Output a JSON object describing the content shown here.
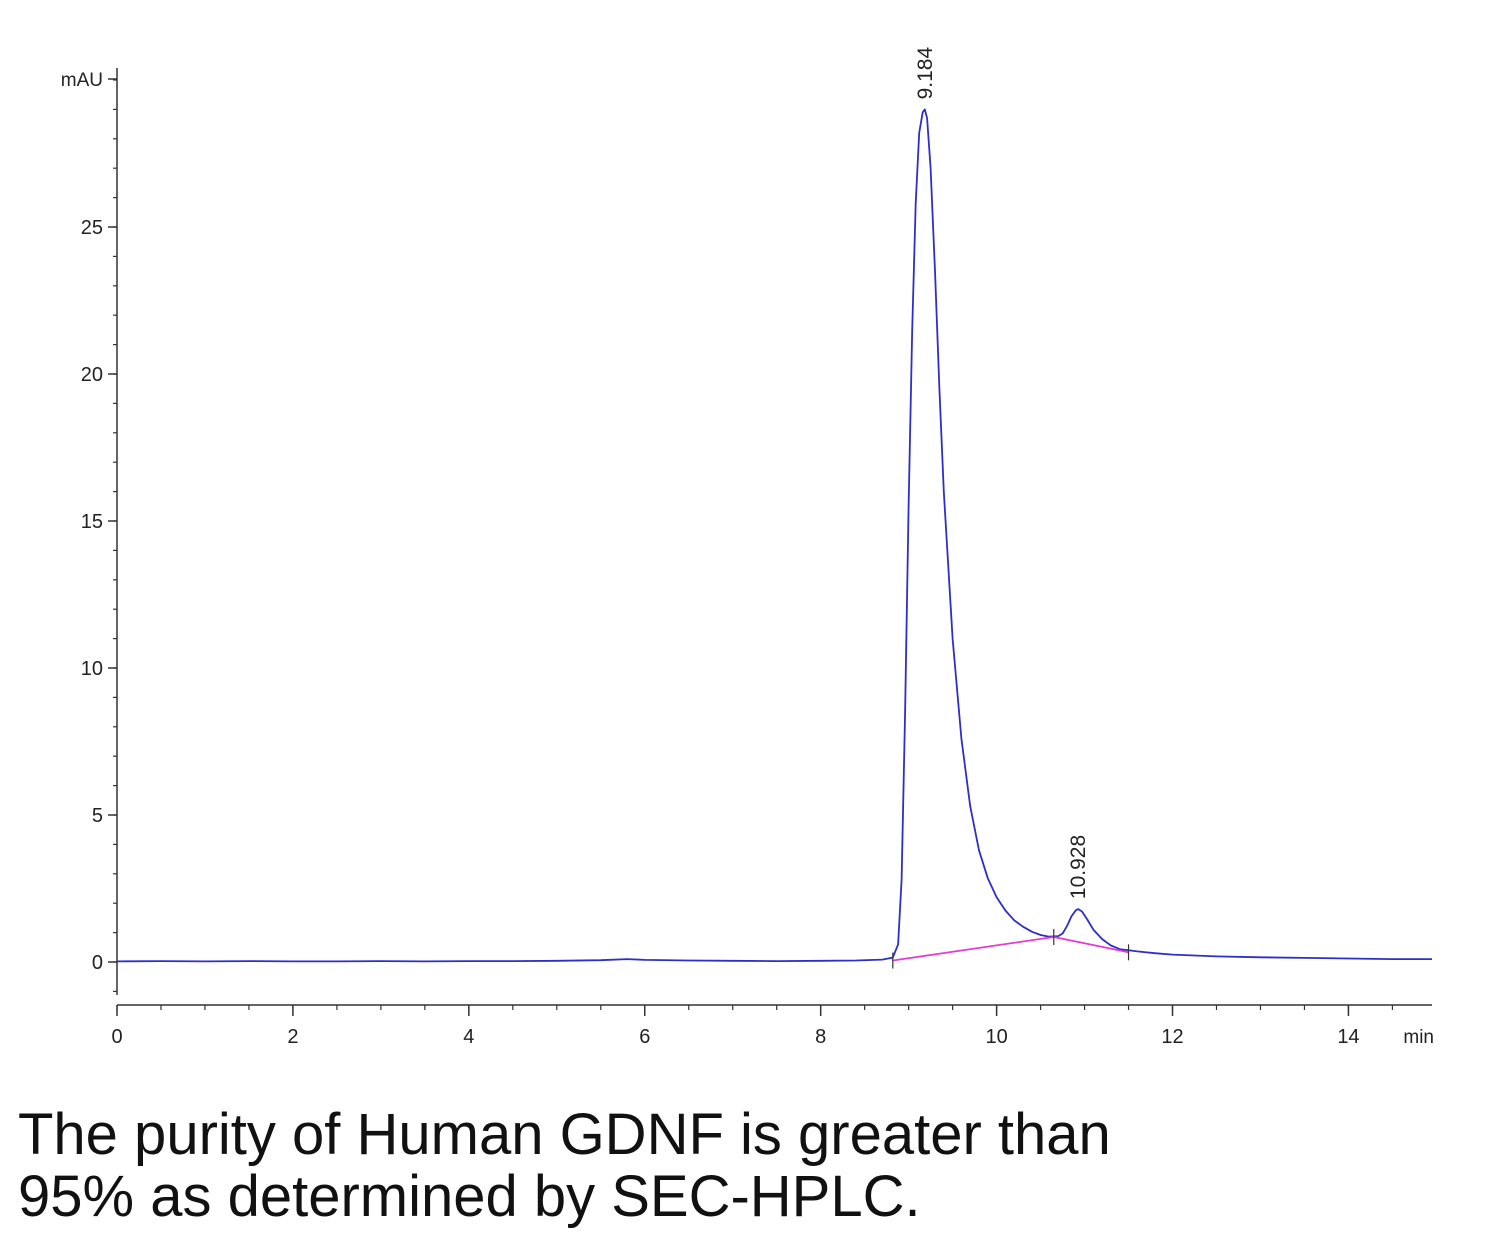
{
  "chart_data": {
    "type": "line",
    "ylabel": "mAU",
    "xlabel": "min",
    "xlim": [
      0,
      14.95
    ],
    "ylim": [
      -1.4,
      30
    ],
    "x_ticks": [
      0,
      2,
      4,
      6,
      8,
      10,
      12,
      14
    ],
    "x_minor_step": 0.5,
    "y_ticks": [
      0,
      5,
      10,
      15,
      20,
      25
    ],
    "y_minor_step": 1,
    "grid": false,
    "series": [
      {
        "color": "#2e2ec8",
        "x": [
          0,
          0.5,
          1,
          1.5,
          2,
          2.5,
          3,
          3.5,
          4,
          4.5,
          5,
          5.5,
          5.8,
          6,
          6.5,
          7,
          7.5,
          8,
          8.4,
          8.7,
          8.82,
          8.88,
          8.92,
          8.96,
          9.0,
          9.04,
          9.08,
          9.12,
          9.16,
          9.184,
          9.21,
          9.25,
          9.3,
          9.35,
          9.4,
          9.5,
          9.6,
          9.7,
          9.8,
          9.9,
          10.0,
          10.1,
          10.2,
          10.3,
          10.4,
          10.5,
          10.6,
          10.7,
          10.75,
          10.8,
          10.85,
          10.9,
          10.928,
          10.97,
          11.03,
          11.1,
          11.2,
          11.3,
          11.4,
          11.6,
          11.8,
          12.0,
          12.5,
          13.0,
          13.5,
          14.0,
          14.5,
          14.95
        ],
        "y": [
          0.02,
          0.03,
          0.02,
          0.03,
          0.02,
          0.02,
          0.03,
          0.02,
          0.03,
          0.03,
          0.04,
          0.06,
          0.1,
          0.07,
          0.05,
          0.04,
          0.03,
          0.04,
          0.05,
          0.08,
          0.15,
          0.6,
          2.8,
          8.5,
          15.5,
          21.5,
          25.8,
          28.2,
          28.9,
          29.0,
          28.7,
          27.0,
          23.5,
          19.5,
          16.0,
          11.0,
          7.6,
          5.3,
          3.8,
          2.85,
          2.2,
          1.75,
          1.42,
          1.2,
          1.03,
          0.92,
          0.86,
          0.88,
          0.97,
          1.22,
          1.55,
          1.76,
          1.8,
          1.72,
          1.45,
          1.1,
          0.78,
          0.56,
          0.44,
          0.36,
          0.3,
          0.25,
          0.19,
          0.16,
          0.14,
          0.12,
          0.1,
          0.1
        ]
      },
      {
        "color": "#e23cd0",
        "x": [
          8.82,
          10.65,
          11.5
        ],
        "y": [
          0.05,
          0.85,
          0.33
        ]
      }
    ],
    "peak_labels": [
      {
        "x": 9.184,
        "y": 29.0,
        "text": "9.184"
      },
      {
        "x": 10.928,
        "y": 1.8,
        "text": "10.928"
      }
    ],
    "baseline_marks": [
      {
        "x": 8.82,
        "y": 0.05
      },
      {
        "x": 10.65,
        "y": 0.85
      },
      {
        "x": 11.5,
        "y": 0.33
      }
    ]
  },
  "caption": {
    "line1": "The purity of Human GDNF is greater than",
    "line2": "95% as determined by SEC-HPLC."
  }
}
